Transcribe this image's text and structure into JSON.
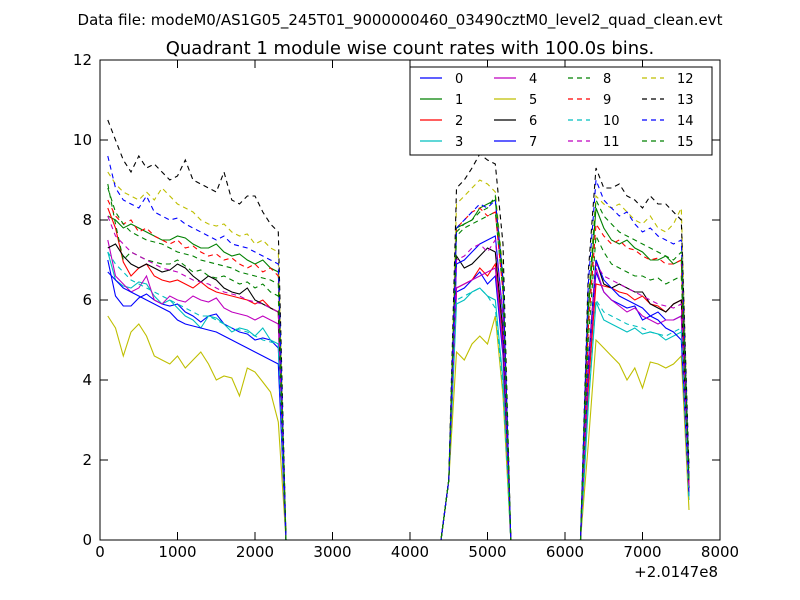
{
  "header": {
    "suptitle": "Data file: modeM0/AS1G05_245T01_9000000460_03490cztM0_level2_quad_clean.evt"
  },
  "chart_data": {
    "type": "line",
    "title": "Quadrant 1 module wise count rates with 100.0s bins.",
    "xlabel": "",
    "ylabel": "",
    "x_offset_label": "+2.0147e8",
    "xlim": [
      0,
      8000
    ],
    "ylim": [
      0,
      12
    ],
    "xticks": [
      0,
      1000,
      2000,
      3000,
      4000,
      5000,
      6000,
      7000,
      8000
    ],
    "yticks": [
      0,
      2,
      4,
      6,
      8,
      10,
      12
    ],
    "grid": false,
    "legend_position": "top-right",
    "segments": [
      {
        "x_start": 100,
        "x_end": 2300
      },
      {
        "x_start": 4600,
        "x_end": 5100
      },
      {
        "x_start": 6400,
        "x_end": 7500
      }
    ],
    "gaps": {
      "drop_x": [
        2400,
        4500,
        5300,
        6300,
        7600
      ],
      "zero_x": [
        [
          2400,
          4400
        ],
        [
          5300,
          6200
        ]
      ]
    },
    "series": [
      {
        "name": "0",
        "color": "#0000ff",
        "dash": "solid",
        "seg1": [
          7.0,
          6.1,
          5.85,
          5.85,
          6.05,
          6.15,
          6.0,
          5.9,
          5.85,
          5.9,
          5.7,
          5.6,
          5.45,
          5.6,
          5.65,
          5.4,
          5.3,
          5.2,
          5.15,
          5.0,
          5.05,
          5.0,
          4.8
        ],
        "seg2": [
          6.2,
          6.3,
          6.5,
          6.7,
          6.4,
          6.6
        ],
        "seg3": [
          6.7,
          6.2,
          6.0,
          5.9,
          5.8,
          5.85,
          5.5,
          5.6,
          5.7,
          5.5,
          5.5,
          5.6
        ],
        "end_value": 1.2
      },
      {
        "name": "1",
        "color": "#008000",
        "dash": "solid",
        "seg1": [
          8.1,
          8.0,
          7.8,
          7.9,
          7.8,
          7.7,
          7.6,
          7.5,
          7.5,
          7.6,
          7.55,
          7.4,
          7.3,
          7.3,
          7.4,
          7.2,
          7.1,
          7.15,
          7.0,
          6.9,
          7.0,
          6.8,
          6.7
        ],
        "seg2": [
          7.8,
          7.9,
          8.0,
          8.3,
          8.4,
          8.5
        ],
        "seg3": [
          8.3,
          7.8,
          7.5,
          7.4,
          7.5,
          7.3,
          7.2,
          7.0,
          7.0,
          7.1,
          6.9,
          7.0
        ],
        "end_value": 1.4
      },
      {
        "name": "2",
        "color": "#ff0000",
        "dash": "solid",
        "seg1": [
          8.3,
          7.8,
          6.95,
          6.6,
          6.8,
          6.9,
          6.6,
          6.5,
          6.45,
          6.5,
          6.4,
          6.3,
          6.45,
          6.3,
          6.2,
          6.15,
          6.1,
          6.05,
          6.0,
          5.9,
          6.0,
          5.8,
          5.7
        ],
        "seg2": [
          6.3,
          6.4,
          6.5,
          6.8,
          6.6,
          6.9
        ],
        "seg3": [
          6.4,
          6.35,
          6.3,
          6.2,
          6.15,
          6.0,
          6.1,
          5.9,
          5.85,
          5.7,
          5.9,
          6.0
        ],
        "end_value": 1.3
      },
      {
        "name": "3",
        "color": "#00bfbf",
        "dash": "solid",
        "seg1": [
          7.2,
          6.5,
          6.35,
          6.3,
          6.45,
          6.4,
          6.1,
          5.9,
          6.0,
          5.8,
          5.6,
          5.5,
          5.3,
          5.6,
          5.55,
          5.4,
          5.2,
          5.3,
          5.25,
          5.1,
          5.3,
          5.0,
          4.9
        ],
        "seg2": [
          5.9,
          6.0,
          6.2,
          6.3,
          6.1,
          6.0
        ],
        "seg3": [
          5.95,
          5.5,
          5.4,
          5.3,
          5.2,
          5.3,
          5.15,
          5.2,
          5.15,
          5.0,
          5.1,
          5.2
        ],
        "end_value": 1.0
      },
      {
        "name": "4",
        "color": "#bf00bf",
        "dash": "solid",
        "seg1": [
          7.5,
          6.6,
          6.4,
          6.2,
          6.3,
          6.6,
          6.0,
          5.9,
          6.1,
          6.0,
          5.95,
          6.1,
          6.0,
          5.95,
          6.05,
          5.8,
          5.7,
          5.65,
          5.6,
          5.5,
          5.6,
          5.5,
          5.4
        ],
        "seg2": [
          6.3,
          6.4,
          6.5,
          6.6,
          6.7,
          6.8
        ],
        "seg3": [
          6.8,
          6.2,
          6.0,
          5.85,
          5.7,
          5.8,
          5.6,
          5.5,
          5.4,
          5.5,
          5.5,
          5.6
        ],
        "end_value": 1.2
      },
      {
        "name": "5",
        "color": "#bfbf00",
        "dash": "solid",
        "seg1": [
          5.6,
          5.3,
          4.6,
          5.2,
          5.4,
          5.1,
          4.6,
          4.5,
          4.4,
          4.6,
          4.3,
          4.5,
          4.7,
          4.4,
          4.0,
          4.1,
          4.05,
          3.6,
          4.3,
          4.2,
          3.95,
          3.7,
          2.95
        ],
        "seg2": [
          4.7,
          4.5,
          4.9,
          5.1,
          4.9,
          5.6
        ],
        "seg3": [
          5.0,
          4.8,
          4.6,
          4.4,
          4.0,
          4.3,
          3.8,
          4.45,
          4.4,
          4.3,
          4.4,
          4.6
        ],
        "end_value": 0.75
      },
      {
        "name": "6",
        "color": "#000000",
        "dash": "solid",
        "seg1": [
          7.3,
          7.4,
          7.1,
          6.9,
          6.8,
          6.9,
          6.8,
          6.7,
          6.75,
          6.9,
          6.8,
          6.6,
          6.45,
          6.6,
          6.5,
          6.3,
          6.2,
          6.15,
          6.3,
          6.0,
          5.9,
          5.8,
          5.7
        ],
        "seg2": [
          7.1,
          6.8,
          6.9,
          7.1,
          7.3,
          7.2
        ],
        "seg3": [
          7.0,
          6.4,
          6.3,
          6.4,
          6.3,
          6.2,
          6.2,
          5.9,
          5.8,
          5.7,
          5.9,
          6.0
        ],
        "end_value": 1.3
      },
      {
        "name": "7",
        "color": "#0000ff",
        "dash": "solid",
        "seg1": [
          6.7,
          6.5,
          6.3,
          6.2,
          6.1,
          6.0,
          5.9,
          5.8,
          5.7,
          5.5,
          5.4,
          5.35,
          5.3,
          5.25,
          5.2,
          5.1,
          5.0,
          4.9,
          4.8,
          4.7,
          4.6,
          4.5,
          4.4
        ],
        "seg2": [
          6.9,
          7.0,
          7.2,
          7.4,
          7.5,
          7.6
        ],
        "seg3": [
          7.0,
          6.5,
          6.3,
          6.1,
          6.0,
          5.9,
          5.8,
          5.6,
          5.5,
          5.3,
          5.2,
          5.0
        ],
        "end_value": 1.1
      },
      {
        "name": "8",
        "color": "#008000",
        "dash": "dashed",
        "seg1": [
          8.9,
          7.9,
          7.0,
          7.2,
          7.1,
          7.0,
          6.95,
          6.9,
          6.9,
          7.0,
          6.85,
          6.7,
          6.75,
          6.6,
          6.55,
          6.6,
          6.5,
          6.4,
          6.45,
          6.3,
          6.4,
          6.2,
          6.1
        ],
        "seg2": [
          7.6,
          7.8,
          7.9,
          8.0,
          8.1,
          8.2
        ],
        "seg3": [
          7.6,
          7.2,
          6.9,
          6.8,
          6.7,
          6.6,
          6.6,
          6.5,
          6.55,
          6.4,
          6.5,
          6.6
        ],
        "end_value": 1.5
      },
      {
        "name": "9",
        "color": "#ff0000",
        "dash": "dashed",
        "seg1": [
          8.5,
          8.1,
          7.9,
          8.0,
          7.7,
          7.8,
          7.6,
          7.5,
          7.4,
          7.5,
          7.3,
          7.35,
          7.2,
          7.1,
          7.15,
          7.0,
          7.05,
          6.9,
          6.8,
          6.9,
          6.7,
          6.8,
          6.6
        ],
        "seg2": [
          7.8,
          8.0,
          8.2,
          8.3,
          8.1,
          8.2
        ],
        "seg3": [
          7.9,
          7.6,
          7.4,
          7.5,
          7.3,
          7.25,
          7.1,
          7.0,
          7.05,
          6.9,
          6.9,
          7.0
        ],
        "end_value": 1.4
      },
      {
        "name": "10",
        "color": "#00bfbf",
        "dash": "dashed",
        "seg1": [
          7.2,
          6.9,
          6.7,
          6.5,
          6.4,
          6.3,
          6.2,
          6.1,
          6.0,
          5.9,
          5.8,
          5.7,
          5.6,
          5.6,
          5.5,
          5.4,
          5.3,
          5.25,
          5.2,
          5.1,
          5.0,
          4.95,
          4.9
        ],
        "seg2": [
          6.0,
          6.1,
          6.2,
          6.3,
          6.1,
          5.8
        ],
        "seg3": [
          6.0,
          5.7,
          5.6,
          5.5,
          5.4,
          5.35,
          5.3,
          5.2,
          5.15,
          5.1,
          5.2,
          5.3
        ],
        "end_value": 1.0
      },
      {
        "name": "11",
        "color": "#bf00bf",
        "dash": "dashed",
        "seg1": [
          8.1,
          7.6,
          7.4,
          7.2,
          7.1,
          7.0,
          6.9,
          6.8,
          6.75,
          6.7,
          6.6,
          6.5,
          6.45,
          6.4,
          6.3,
          6.2,
          6.15,
          6.1,
          6.0,
          5.95,
          5.9,
          5.8,
          5.7
        ],
        "seg2": [
          7.0,
          7.1,
          7.3,
          7.4,
          7.2,
          7.5
        ],
        "seg3": [
          6.9,
          6.6,
          6.5,
          6.4,
          6.3,
          6.2,
          6.1,
          6.0,
          5.9,
          5.85,
          5.8,
          5.9
        ],
        "end_value": 1.3
      },
      {
        "name": "12",
        "color": "#bfbf00",
        "dash": "dashed",
        "seg1": [
          9.2,
          8.9,
          8.7,
          8.6,
          8.5,
          8.7,
          8.5,
          8.8,
          8.6,
          8.4,
          8.3,
          8.2,
          8.0,
          7.9,
          7.85,
          7.9,
          7.7,
          7.6,
          7.65,
          7.4,
          7.5,
          7.3,
          7.2
        ],
        "seg2": [
          8.4,
          8.6,
          8.8,
          9.0,
          8.9,
          8.7
        ],
        "seg3": [
          8.6,
          8.4,
          8.3,
          8.4,
          8.2,
          8.0,
          7.9,
          8.1,
          7.8,
          7.7,
          7.9,
          8.3
        ],
        "end_value": 1.6
      },
      {
        "name": "13",
        "color": "#000000",
        "dash": "dashed",
        "seg1": [
          10.5,
          10.0,
          9.5,
          9.2,
          9.6,
          9.3,
          9.4,
          9.2,
          9.0,
          9.1,
          9.5,
          9.0,
          8.9,
          8.8,
          8.7,
          9.2,
          8.5,
          8.4,
          8.6,
          8.6,
          8.2,
          7.9,
          7.7
        ],
        "seg2": [
          8.8,
          9.0,
          9.3,
          9.65,
          9.5,
          9.4
        ],
        "seg3": [
          9.3,
          8.8,
          8.8,
          8.9,
          8.6,
          8.5,
          8.3,
          8.6,
          8.4,
          8.4,
          8.2,
          8.0
        ],
        "end_value": 1.8
      },
      {
        "name": "14",
        "color": "#0000ff",
        "dash": "dashed",
        "seg1": [
          9.6,
          8.8,
          8.5,
          8.4,
          8.3,
          8.6,
          8.2,
          8.1,
          8.0,
          8.05,
          7.9,
          7.8,
          7.7,
          7.6,
          7.5,
          7.6,
          7.4,
          7.35,
          7.3,
          7.2,
          7.1,
          7.0,
          6.9
        ],
        "seg2": [
          7.8,
          8.0,
          8.2,
          8.4,
          8.3,
          8.5
        ],
        "seg3": [
          9.0,
          8.5,
          8.3,
          8.1,
          8.2,
          7.9,
          7.7,
          7.8,
          7.6,
          7.5,
          7.4,
          7.5
        ],
        "end_value": 1.6
      },
      {
        "name": "15",
        "color": "#008000",
        "dash": "dashed",
        "seg1": [
          8.8,
          8.2,
          7.9,
          7.7,
          7.6,
          7.5,
          7.45,
          7.4,
          7.3,
          7.2,
          7.15,
          7.1,
          7.0,
          6.95,
          6.9,
          6.85,
          6.8,
          6.7,
          6.65,
          6.6,
          6.55,
          6.5,
          6.4
        ],
        "seg2": [
          7.7,
          7.9,
          8.0,
          8.2,
          8.3,
          8.6
        ],
        "seg3": [
          8.5,
          8.1,
          7.9,
          7.7,
          7.6,
          7.5,
          7.4,
          7.3,
          7.2,
          7.1,
          7.0,
          7.2
        ],
        "end_value": 1.5
      }
    ]
  }
}
